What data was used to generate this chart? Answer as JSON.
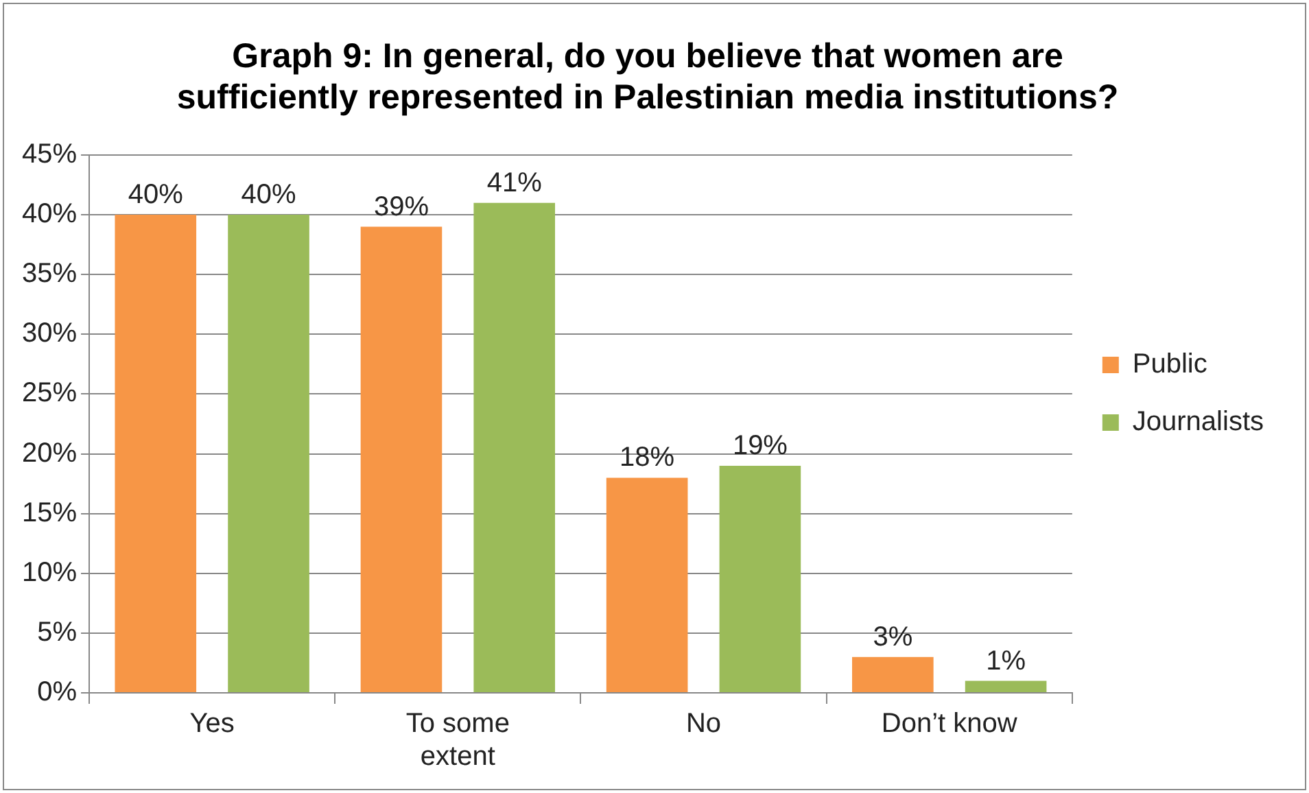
{
  "chart_data": {
    "type": "bar",
    "title": "Graph 9: In general, do you believe that women are sufficiently represented in Palestinian media institutions?",
    "categories": [
      "Yes",
      "To some extent",
      "No",
      "Don’t know"
    ],
    "series": [
      {
        "name": "Public",
        "color": "#f79646",
        "values": [
          40,
          39,
          18,
          3
        ],
        "value_labels": [
          "40%",
          "39%",
          "18%",
          "3%"
        ]
      },
      {
        "name": "Journalists",
        "color": "#9bbb59",
        "values": [
          40,
          41,
          19,
          1
        ],
        "value_labels": [
          "40%",
          "41%",
          "19%",
          "1%"
        ]
      }
    ],
    "ylim": [
      0,
      45
    ],
    "yticks": [
      {
        "value": 0,
        "label": "0%"
      },
      {
        "value": 5,
        "label": "5%"
      },
      {
        "value": 10,
        "label": "10%"
      },
      {
        "value": 15,
        "label": "15%"
      },
      {
        "value": 20,
        "label": "20%"
      },
      {
        "value": 25,
        "label": "25%"
      },
      {
        "value": 30,
        "label": "30%"
      },
      {
        "value": 35,
        "label": "35%"
      },
      {
        "value": 40,
        "label": "40%"
      },
      {
        "value": 45,
        "label": "45%"
      }
    ],
    "grid": "y",
    "legend": "right"
  }
}
